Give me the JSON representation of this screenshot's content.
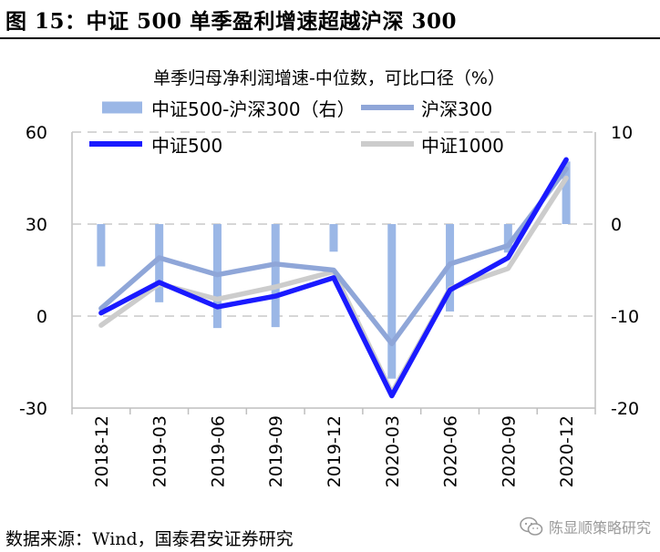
{
  "figure": {
    "title": "图 15：中证 500 单季盈利增速超越沪深 300",
    "source": "数据来源：Wind，国泰君安证券研究",
    "watermark": "陈显顺策略研究",
    "watermark_icon": "wechat-icon"
  },
  "chart_data": {
    "type": "line",
    "title": "单季归母净利润增速-中位数，可比口径（%）",
    "categories": [
      "2018-12",
      "2019-03",
      "2019-06",
      "2019-09",
      "2019-12",
      "2020-03",
      "2020-06",
      "2020-09",
      "2020-12"
    ],
    "y_left": {
      "ticks": [
        60,
        30,
        0,
        -30
      ],
      "range": [
        -30,
        60
      ]
    },
    "y_right": {
      "ticks": [
        10,
        0,
        -10,
        -20
      ],
      "range": [
        -20,
        10
      ]
    },
    "grid": "horizontal dashed",
    "legend_position": "top",
    "series": [
      {
        "name": "中证500-沪深300（右）",
        "type": "bar",
        "axis": "right",
        "color": "#9bb7e6",
        "values": [
          -4.6,
          -8.5,
          -11.3,
          -11.2,
          -3.0,
          -16.8,
          -9.5,
          -3.1,
          6.8
        ]
      },
      {
        "name": "沪深300",
        "type": "line",
        "axis": "left",
        "color": "#8fa6d8",
        "values": [
          2.5,
          19,
          13.5,
          17,
          15,
          -9,
          17,
          23,
          48
        ]
      },
      {
        "name": "中证500",
        "type": "line",
        "axis": "left",
        "color": "#1a1aff",
        "values": [
          1,
          11,
          3,
          6.5,
          12.5,
          -26,
          8.5,
          19,
          51
        ]
      },
      {
        "name": "中证1000",
        "type": "line",
        "axis": "left",
        "color": "#cccccc",
        "values": [
          -3,
          10.5,
          5.5,
          9.5,
          14.5,
          -25,
          9,
          15.5,
          45
        ]
      }
    ]
  }
}
